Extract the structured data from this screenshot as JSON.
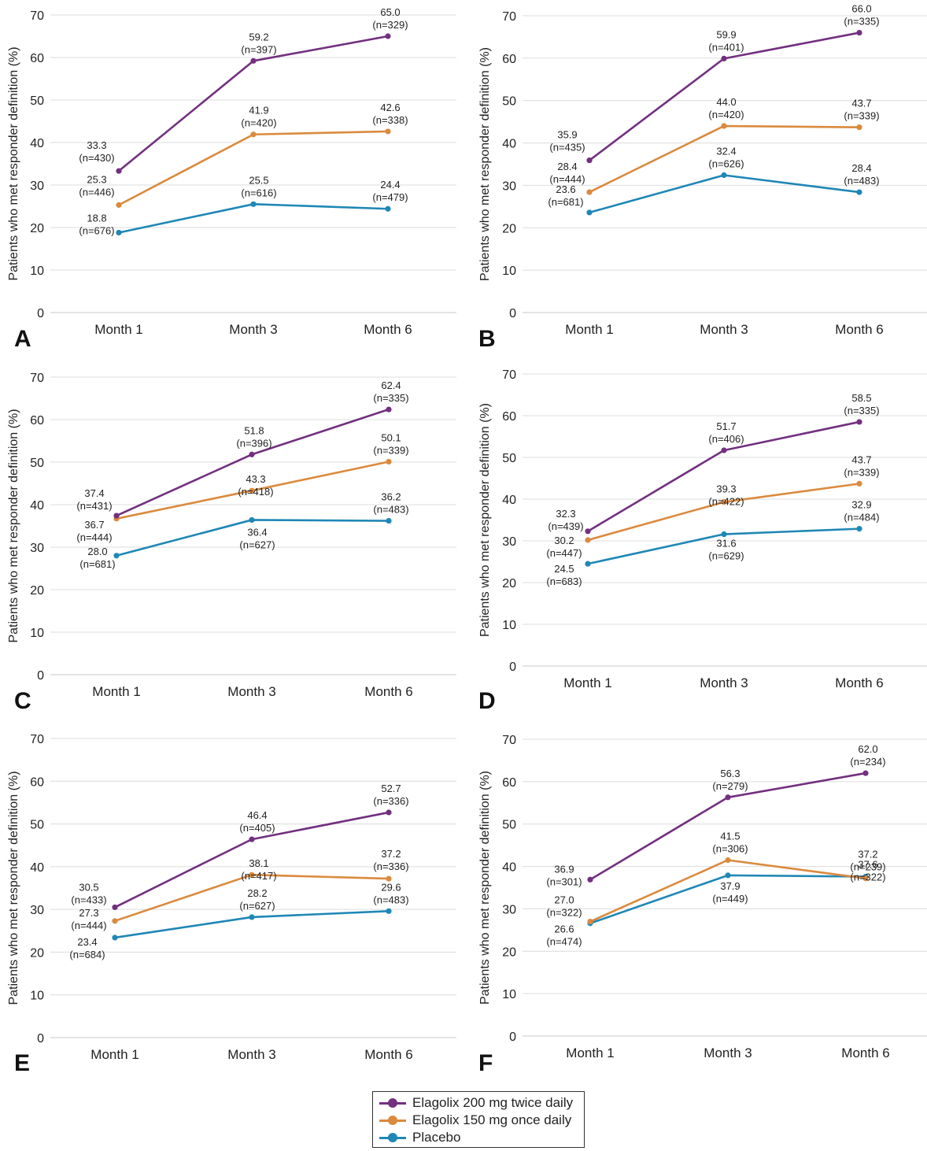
{
  "colors": {
    "elagolix_200": "#72307f",
    "elagolix_150": "#da8a3e",
    "placebo": "#1f87b6",
    "grid": "#dcdcdc",
    "text": "#222222"
  },
  "legend": {
    "items": [
      {
        "label": "Elagolix 200 mg twice daily",
        "color": "#72307f"
      },
      {
        "label": "Elagolix 150 mg once daily",
        "color": "#da8a3e"
      },
      {
        "label": "Placebo",
        "color": "#1f87b6"
      }
    ]
  },
  "chart_data": [
    {
      "panel": "A",
      "type": "line",
      "categories": [
        "Month 1",
        "Month 3",
        "Month 6"
      ],
      "ylabel": "Patients who met responder definition (%)",
      "ylim": [
        0,
        70
      ],
      "yticks": [
        0,
        10,
        20,
        30,
        40,
        50,
        60,
        70
      ],
      "grid": true,
      "series": [
        {
          "name": "Elagolix 200 mg twice daily",
          "values": [
            33.3,
            59.2,
            65.0
          ],
          "labels": [
            [
              "33.3",
              "(n=430)"
            ],
            [
              "59.2",
              "(n=397)"
            ],
            [
              "65.0",
              "(n=329)"
            ]
          ]
        },
        {
          "name": "Elagolix 150 mg once daily",
          "values": [
            25.3,
            41.9,
            42.6
          ],
          "labels": [
            [
              "25.3",
              "(n=446)"
            ],
            [
              "41.9",
              "(n=420)"
            ],
            [
              "42.6",
              "(n=338)"
            ]
          ]
        },
        {
          "name": "Placebo",
          "values": [
            18.8,
            25.5,
            24.4
          ],
          "labels": [
            [
              "18.8",
              "(n=676)"
            ],
            [
              "25.5",
              "(n=616)"
            ],
            [
              "24.4",
              "(n=479)"
            ]
          ]
        }
      ]
    },
    {
      "panel": "B",
      "type": "line",
      "categories": [
        "Month 1",
        "Month 3",
        "Month 6"
      ],
      "ylabel": "Patients who met responder definition (%)",
      "ylim": [
        0,
        70
      ],
      "yticks": [
        0,
        10,
        20,
        30,
        40,
        50,
        60,
        70
      ],
      "grid": true,
      "series": [
        {
          "name": "Elagolix 200 mg twice daily",
          "values": [
            35.9,
            59.9,
            66.0
          ],
          "labels": [
            [
              "35.9",
              "(n=435)"
            ],
            [
              "59.9",
              "(n=401)"
            ],
            [
              "66.0",
              "(n=335)"
            ]
          ]
        },
        {
          "name": "Elagolix 150 mg once daily",
          "values": [
            28.4,
            44.0,
            43.7
          ],
          "labels": [
            [
              "28.4",
              "(n=444)"
            ],
            [
              "44.0",
              "(n=420)"
            ],
            [
              "43.7",
              "(n=339)"
            ]
          ]
        },
        {
          "name": "Placebo",
          "values": [
            23.6,
            32.4,
            28.4
          ],
          "labels": [
            [
              "23.6",
              "(n=681)"
            ],
            [
              "32.4",
              "(n=626)"
            ],
            [
              "28.4",
              "(n=483)"
            ]
          ]
        }
      ]
    },
    {
      "panel": "C",
      "type": "line",
      "categories": [
        "Month 1",
        "Month 3",
        "Month 6"
      ],
      "ylabel": "Patients who met responder definition (%)",
      "ylim": [
        0,
        70
      ],
      "yticks": [
        0,
        10,
        20,
        30,
        40,
        50,
        60,
        70
      ],
      "grid": true,
      "series": [
        {
          "name": "Elagolix 200 mg twice daily",
          "values": [
            37.4,
            51.8,
            62.4
          ],
          "labels": [
            [
              "37.4",
              "(n=431)"
            ],
            [
              "51.8",
              "(n=396)"
            ],
            [
              "62.4",
              "(n=335)"
            ]
          ]
        },
        {
          "name": "Elagolix 150 mg once daily",
          "values": [
            36.7,
            43.3,
            50.1
          ],
          "labels": [
            [
              "36.7",
              "(n=444)"
            ],
            [
              "43.3",
              "(n=418)"
            ],
            [
              "50.1",
              "(n=339)"
            ]
          ]
        },
        {
          "name": "Placebo",
          "values": [
            28.0,
            36.4,
            36.2
          ],
          "labels": [
            [
              "28.0",
              "(n=681)"
            ],
            [
              "36.4",
              "(n=627)"
            ],
            [
              "36.2",
              "(n=483)"
            ]
          ]
        }
      ]
    },
    {
      "panel": "D",
      "type": "line",
      "categories": [
        "Month 1",
        "Month 3",
        "Month 6"
      ],
      "ylabel": "Patients who met responder definition (%)",
      "ylim": [
        0,
        70
      ],
      "yticks": [
        0,
        10,
        20,
        30,
        40,
        50,
        60,
        70
      ],
      "grid": true,
      "series": [
        {
          "name": "Elagolix 200 mg twice daily",
          "values": [
            32.3,
            51.7,
            58.5
          ],
          "labels": [
            [
              "32.3",
              "(n=439)"
            ],
            [
              "51.7",
              "(n=406)"
            ],
            [
              "58.5",
              "(n=335)"
            ]
          ]
        },
        {
          "name": "Elagolix 150 mg once daily",
          "values": [
            30.2,
            39.3,
            43.7
          ],
          "labels": [
            [
              "30.2",
              "(n=447)"
            ],
            [
              "39.3",
              "(n=422)"
            ],
            [
              "43.7",
              "(n=339)"
            ]
          ]
        },
        {
          "name": "Placebo",
          "values": [
            24.5,
            31.6,
            32.9
          ],
          "labels": [
            [
              "24.5",
              "(n=683)"
            ],
            [
              "31.6",
              "(n=629)"
            ],
            [
              "32.9",
              "(n=484)"
            ]
          ]
        }
      ]
    },
    {
      "panel": "E",
      "type": "line",
      "categories": [
        "Month 1",
        "Month 3",
        "Month 6"
      ],
      "ylabel": "Patients who met responder definition (%)",
      "ylim": [
        0,
        70
      ],
      "yticks": [
        0,
        10,
        20,
        30,
        40,
        50,
        60,
        70
      ],
      "grid": true,
      "series": [
        {
          "name": "Elagolix 200 mg twice daily",
          "values": [
            30.5,
            46.4,
            52.7
          ],
          "labels": [
            [
              "30.5",
              "(n=433)"
            ],
            [
              "46.4",
              "(n=405)"
            ],
            [
              "52.7",
              "(n=336)"
            ]
          ]
        },
        {
          "name": "Elagolix 150 mg once daily",
          "values": [
            27.3,
            38.1,
            37.2
          ],
          "labels": [
            [
              "27.3",
              "(n=444)"
            ],
            [
              "38.1",
              "(n=417)"
            ],
            [
              "37.2",
              "(n=336)"
            ]
          ]
        },
        {
          "name": "Placebo",
          "values": [
            23.4,
            28.2,
            29.6
          ],
          "labels": [
            [
              "23.4",
              "(n=684)"
            ],
            [
              "28.2",
              "(n=627)"
            ],
            [
              "29.6",
              "(n=483)"
            ]
          ]
        }
      ]
    },
    {
      "panel": "F",
      "type": "line",
      "categories": [
        "Month 1",
        "Month 3",
        "Month 6"
      ],
      "ylabel": "Patients who met responder definition (%)",
      "ylim": [
        0,
        70
      ],
      "yticks": [
        0,
        10,
        20,
        30,
        40,
        50,
        60,
        70
      ],
      "grid": true,
      "series": [
        {
          "name": "Elagolix 200 mg twice daily",
          "values": [
            36.9,
            56.3,
            62.0
          ],
          "labels": [
            [
              "36.9",
              "(n=301)"
            ],
            [
              "56.3",
              "(n=279)"
            ],
            [
              "62.0",
              "(n=234)"
            ]
          ]
        },
        {
          "name": "Elagolix 150 mg once daily",
          "values": [
            27.0,
            41.5,
            37.2
          ],
          "labels": [
            [
              "27.0",
              "(n=322)"
            ],
            [
              "41.5",
              "(n=306)"
            ],
            [
              "37.2",
              "(n=239)"
            ]
          ]
        },
        {
          "name": "Placebo",
          "values": [
            26.6,
            37.9,
            37.6
          ],
          "labels": [
            [
              "26.6",
              "(n=474)"
            ],
            [
              "37.9",
              "(n=449)"
            ],
            [
              "37.6",
              "(n=322)"
            ]
          ]
        }
      ]
    }
  ]
}
